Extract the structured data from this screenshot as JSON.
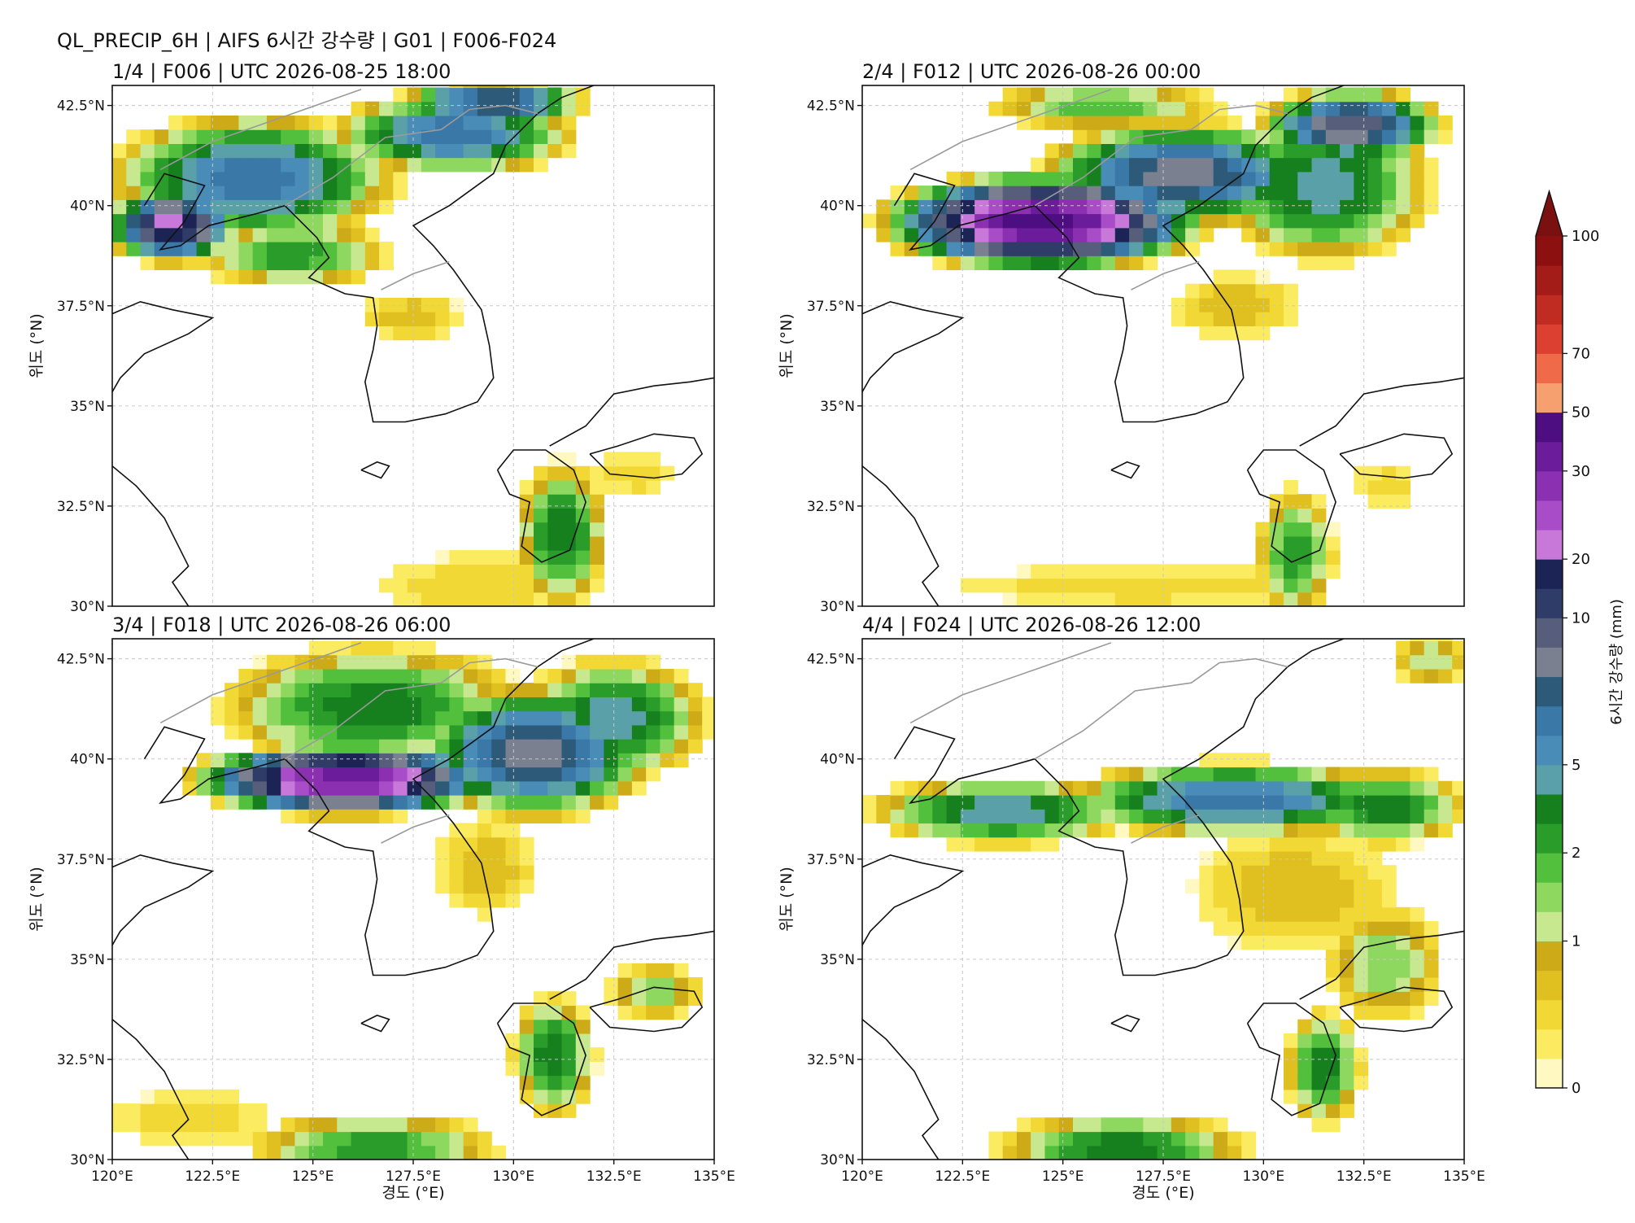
{
  "figure_title": "QL_PRECIP_6H | AIFS 6시간 강수량 | G01 | F006-F024",
  "chart_data": {
    "type": "heatmap",
    "xlabel": "경도 (°E)",
    "ylabel": "위도 (°N)",
    "xlim": [
      120,
      135
    ],
    "ylim": [
      30,
      43
    ],
    "x_ticks": [
      "120°E",
      "122.5°E",
      "125°E",
      "127.5°E",
      "130°E",
      "132.5°E",
      "135°E"
    ],
    "y_ticks": [
      "30°N",
      "32.5°N",
      "35°N",
      "37.5°N",
      "40°N",
      "42.5°N"
    ],
    "grid": true,
    "panels": [
      {
        "title": "1/4 | F006 | UTC 2026-08-25 18:00"
      },
      {
        "title": "2/4 | F012 | UTC 2026-08-26 00:00"
      },
      {
        "title": "3/4 | F018 | UTC 2026-08-26 06:00"
      },
      {
        "title": "4/4 | F024 | UTC 2026-08-26 12:00"
      }
    ],
    "colorbar": {
      "label": "6시간 강수량 (mm)",
      "tick_labels": [
        "0",
        "1",
        "2",
        "5",
        "10",
        "20",
        "30",
        "50",
        "70",
        "100"
      ],
      "extend": "max",
      "colors": [
        "#fff8c0",
        "#fbeb60",
        "#f2d835",
        "#e0c020",
        "#ccaa18",
        "#c8e890",
        "#8fd860",
        "#52c03c",
        "#2a9c2a",
        "#16801e",
        "#5aa0a8",
        "#4a8cb8",
        "#3a78a8",
        "#2c5a78",
        "#7a8090",
        "#565e7c",
        "#303c68",
        "#1c2456",
        "#c878d8",
        "#a84cc8",
        "#8a30b0",
        "#6a1c9a",
        "#4c0e80",
        "#f6a070",
        "#ee6a48",
        "#dc4030",
        "#c02c22",
        "#a41c18",
        "#8c1010"
      ],
      "extend_color": "#7a1010"
    }
  }
}
